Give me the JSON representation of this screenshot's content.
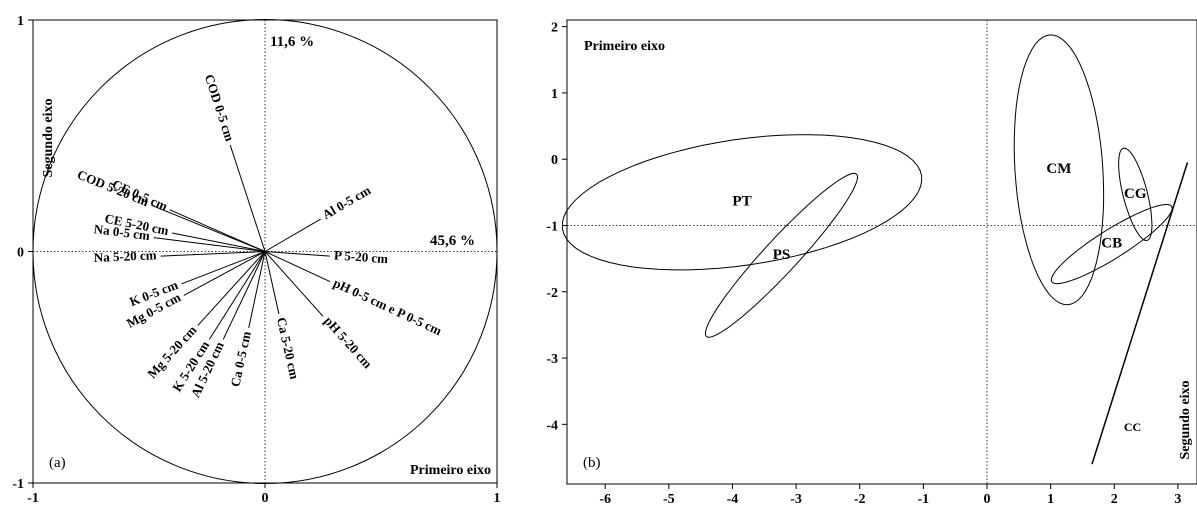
{
  "chart_data": [
    {
      "type": "scatter",
      "panel_label": "(a)",
      "axis_label_first": "Primeiro eixo",
      "axis_label_second": "Segundo eixo",
      "variance_first": "45,6 %",
      "variance_second": "11,6 %",
      "xlim": [
        -1,
        1
      ],
      "ylim": [
        -1,
        1
      ],
      "x_ticks": [
        "-1",
        "0",
        "1"
      ],
      "y_ticks": [
        "-1",
        "0",
        "1"
      ],
      "unit_circle": true,
      "loadings": [
        {
          "label": "COD 0-5 cm",
          "x": -0.15,
          "y": 0.46
        },
        {
          "label": "COD 5-20 cm",
          "x": -0.49,
          "y": 0.2
        },
        {
          "label": "CE 0-5 cm",
          "x": -0.41,
          "y": 0.18
        },
        {
          "label": "CE 5-20 cm",
          "x": -0.4,
          "y": 0.08
        },
        {
          "label": "Na 0-5 cm",
          "x": -0.48,
          "y": 0.06
        },
        {
          "label": "Na 5-20 cm",
          "x": -0.45,
          "y": -0.02
        },
        {
          "label": "Al 0-5 cm",
          "x": 0.24,
          "y": 0.14
        },
        {
          "label": "P 5-20 cm",
          "x": 0.28,
          "y": -0.02
        },
        {
          "label": "pH 0-5 cm e P 0-5 cm",
          "x": 0.28,
          "y": -0.13
        },
        {
          "label": "pH 5-20 cm",
          "x": 0.25,
          "y": -0.28
        },
        {
          "label": "K 0-5 cm",
          "x": -0.36,
          "y": -0.14
        },
        {
          "label": "Mg 0-5 cm",
          "x": -0.35,
          "y": -0.19
        },
        {
          "label": "Mg 5-20 cm",
          "x": -0.29,
          "y": -0.32
        },
        {
          "label": "K 5-20 cm",
          "x": -0.24,
          "y": -0.38
        },
        {
          "label": "Al 5-20 cm",
          "x": -0.18,
          "y": -0.38
        },
        {
          "label": "Ca 0-5 cm",
          "x": -0.07,
          "y": -0.33
        },
        {
          "label": "Ca 5-20 cm",
          "x": 0.06,
          "y": -0.27
        }
      ]
    },
    {
      "type": "scatter",
      "panel_label": "(b)",
      "axis_label_first": "Primeiro eixo",
      "axis_label_second": "Segundo eixo",
      "xlim": [
        -6.6,
        3.3
      ],
      "ylim": [
        -4.9,
        2.1
      ],
      "x_ticks": [
        -6,
        -5,
        -4,
        -3,
        -2,
        -1,
        0,
        1,
        2,
        3
      ],
      "y_ticks": [
        2,
        1,
        0,
        -1,
        -2,
        -3,
        -4
      ],
      "reference_lines": {
        "x": 0,
        "y": -1
      },
      "groups": [
        {
          "label": "PT",
          "center": [
            -3.85,
            -0.65
          ],
          "rx": 2.85,
          "ry": 0.95,
          "angle_deg": 8
        },
        {
          "label": "PS",
          "center": [
            -3.23,
            -1.45
          ],
          "rx": 1.7,
          "ry": 0.26,
          "angle_deg": 46
        },
        {
          "label": "CM",
          "center": [
            1.13,
            -0.16
          ],
          "rx": 2.04,
          "ry": 0.69,
          "angle_deg": 94
        },
        {
          "label": "CG",
          "center": [
            2.33,
            -0.53
          ],
          "rx": 0.72,
          "ry": 0.19,
          "angle_deg": 105
        },
        {
          "label": "CB",
          "center": [
            1.96,
            -1.28
          ],
          "rx": 1.1,
          "ry": 0.22,
          "angle_deg": 31
        }
      ],
      "line_group": {
        "label": "CC",
        "from": [
          1.65,
          -4.6
        ],
        "to": [
          3.15,
          -0.05
        ]
      }
    }
  ]
}
